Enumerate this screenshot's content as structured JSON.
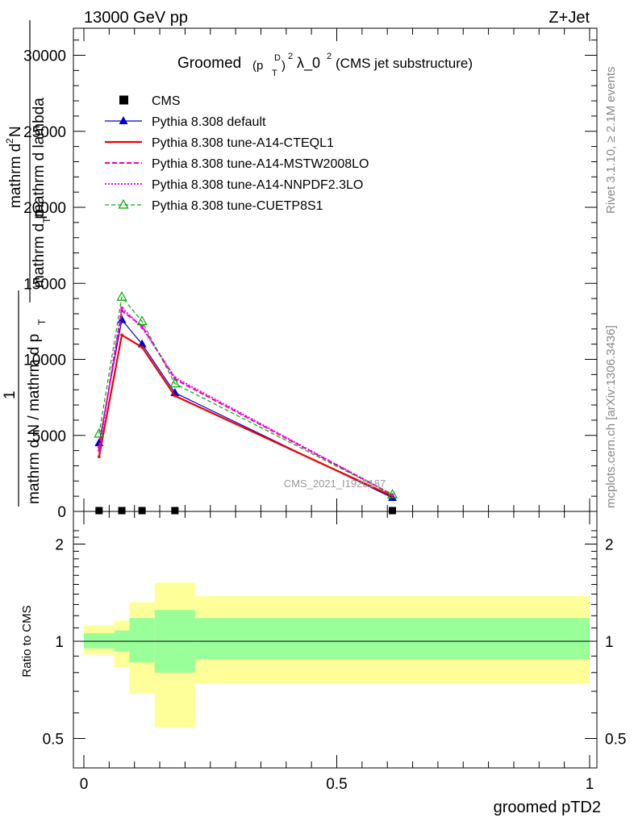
{
  "header": {
    "left": "13000 GeV pp",
    "right": "Z+Jet"
  },
  "title": {
    "main": "Groomed",
    "sup1": "D",
    "sub1": "T",
    "sup2": "2",
    "lambda": "λ_0",
    "sup3": "2",
    "suffix": "(CMS jet substructure)",
    "p_open": "(p",
    "p_close": ")"
  },
  "ylabel_main": {
    "numerator_top": "mathrm d",
    "numerator_sup": "2",
    "numerator_n": "N",
    "one": "1",
    "denominator": "mathrm d N / mathrm d p",
    "denominator_sub": "T",
    "frac_part1": "mathrm d p",
    "frac_part1_sub": "T",
    "frac_part2": " mathrm d lambda"
  },
  "side_labels": {
    "rivet": "Rivet 3.1.10, ≥ 2.1M events",
    "mcplots": "mcplots.cern.ch [arXiv:1306.3436]"
  },
  "watermark": "CMS_2021_I1920187",
  "ratio_ylabel": "Ratio to CMS",
  "xlabel": "groomed pTD2",
  "x_ticks": [
    "0",
    "0.5",
    "1"
  ],
  "y_ticks_main": [
    "0",
    "5000",
    "10000",
    "15000",
    "20000",
    "25000",
    "30000"
  ],
  "y_ticks_ratio": [
    "0.5",
    "1",
    "2"
  ],
  "legend": [
    {
      "label": "CMS"
    },
    {
      "label": "Pythia 8.308 default"
    },
    {
      "label": "Pythia 8.308 tune-A14-CTEQL1"
    },
    {
      "label": "Pythia 8.308 tune-A14-MSTW2008LO"
    },
    {
      "label": "Pythia 8.308 tune-A14-NNPDF2.3LO"
    },
    {
      "label": "Pythia 8.308 tune-CUETP8S1"
    }
  ],
  "chart_data": {
    "type": "line",
    "xlabel": "groomed pTD2",
    "ylim": [
      0,
      32000
    ],
    "xlim": [
      0,
      1
    ],
    "ratio_ylim_log": [
      0.4,
      2.3
    ],
    "x": [
      0.03,
      0.075,
      0.115,
      0.18,
      0.61
    ],
    "series": [
      {
        "name": "CMS",
        "values": [
          20,
          20,
          20,
          20,
          20
        ],
        "color": "#000000",
        "style": "marker-square"
      },
      {
        "name": "Pythia 8.308 default",
        "values": [
          4500,
          12600,
          11000,
          7800,
          900
        ],
        "color": "#0000cc",
        "style": "solid-triangle"
      },
      {
        "name": "Pythia 8.308 tune-A14-CTEQL1",
        "values": [
          3600,
          11600,
          10800,
          7600,
          1000
        ],
        "color": "#ee0000",
        "style": "solid-thick"
      },
      {
        "name": "Pythia 8.308 tune-A14-MSTW2008LO",
        "values": [
          4200,
          13200,
          12200,
          8700,
          1100
        ],
        "color": "#ee00aa",
        "style": "dashed"
      },
      {
        "name": "Pythia 8.308 tune-A14-NNPDF2.3LO",
        "values": [
          4000,
          13400,
          12100,
          8800,
          1100
        ],
        "color": "#ee00ee",
        "style": "dotted"
      },
      {
        "name": "Pythia 8.308 tune-CUETP8S1",
        "values": [
          5100,
          14100,
          12500,
          8400,
          1100
        ],
        "color": "#00aa00",
        "style": "dashed-open-triangle"
      }
    ],
    "ratio_bands": {
      "edges": [
        0.0,
        0.06,
        0.09,
        0.14,
        0.22,
        1.0
      ],
      "yellow": [
        [
          0.91,
          1.12
        ],
        [
          0.83,
          1.16
        ],
        [
          0.69,
          1.32
        ],
        [
          0.54,
          1.52
        ],
        [
          0.74,
          1.38
        ]
      ],
      "green": [
        [
          0.95,
          1.06
        ],
        [
          0.93,
          1.08
        ],
        [
          0.86,
          1.18
        ],
        [
          0.8,
          1.25
        ],
        [
          0.88,
          1.18
        ]
      ]
    }
  },
  "colors": {
    "yellow_band": "#ffff99",
    "green_band": "#99ff99"
  }
}
